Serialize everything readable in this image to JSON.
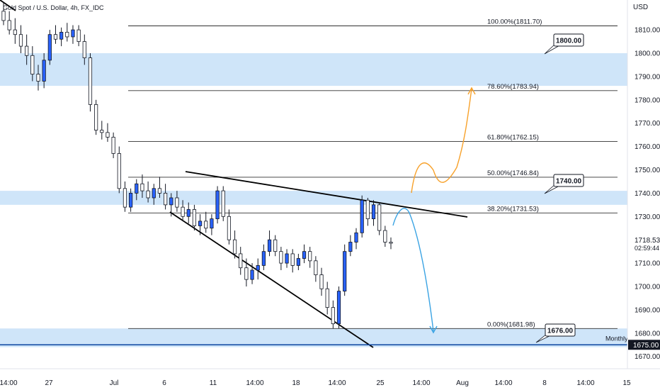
{
  "chart_data": {
    "type": "candlestick",
    "symbol_label": "Gold Spot / U.S. Dollar, 4h, FX_IDC",
    "currency_label": "USD",
    "y_ticks": [
      1810,
      1800,
      1790,
      1780,
      1770,
      1760,
      1750,
      1740,
      1730,
      1720,
      1710,
      1700,
      1690,
      1680,
      1670
    ],
    "ylim": [
      1665,
      1823
    ],
    "x_ticks": [
      "14:00",
      "27",
      "Jul",
      "6",
      "11",
      "14:00",
      "18",
      "14:00",
      "25",
      "14:00",
      "Aug",
      "14:00",
      "8",
      "14:00",
      "15"
    ],
    "zones": [
      {
        "low": 1786,
        "high": 1800,
        "label": "1800.00"
      },
      {
        "low": 1735,
        "high": 1741,
        "label": "1740.00"
      },
      {
        "low": 1674,
        "high": 1682,
        "label": "1676.00"
      }
    ],
    "fib_levels": [
      {
        "value": 1811.7,
        "label": "100.00%(1811.70)"
      },
      {
        "value": 1783.94,
        "label": "78.60%(1783.94)"
      },
      {
        "value": 1762.15,
        "label": "61.80%(1762.15)"
      },
      {
        "value": 1746.84,
        "label": "50.00%(1746.84)"
      },
      {
        "value": 1731.53,
        "label": "38.20%(1731.53)"
      },
      {
        "value": 1681.98,
        "label": "0.00%(1681.98)"
      }
    ],
    "monthly_level": {
      "value": 1675.0,
      "label": "Monthly",
      "badge": "1675.00"
    },
    "last_price": {
      "value": "1718.53",
      "countdown": "02:59:44"
    },
    "candles": [
      [
        1818,
        1822,
        1812,
        1814
      ],
      [
        1814,
        1818,
        1808,
        1810
      ],
      [
        1810,
        1815,
        1804,
        1808
      ],
      [
        1808,
        1812,
        1800,
        1803
      ],
      [
        1803,
        1808,
        1795,
        1799
      ],
      [
        1799,
        1803,
        1788,
        1791
      ],
      [
        1791,
        1795,
        1784,
        1788
      ],
      [
        1788,
        1800,
        1785,
        1797
      ],
      [
        1797,
        1810,
        1795,
        1808
      ],
      [
        1808,
        1812,
        1804,
        1806
      ],
      [
        1806,
        1811,
        1803,
        1809
      ],
      [
        1809,
        1813,
        1805,
        1807
      ],
      [
        1807,
        1812,
        1804,
        1810
      ],
      [
        1810,
        1812,
        1803,
        1805
      ],
      [
        1805,
        1808,
        1795,
        1798
      ],
      [
        1798,
        1800,
        1775,
        1778
      ],
      [
        1778,
        1780,
        1765,
        1767
      ],
      [
        1767,
        1771,
        1763,
        1766
      ],
      [
        1766,
        1770,
        1762,
        1764
      ],
      [
        1764,
        1766,
        1755,
        1757
      ],
      [
        1757,
        1760,
        1740,
        1742
      ],
      [
        1742,
        1745,
        1732,
        1734
      ],
      [
        1734,
        1742,
        1732,
        1740
      ],
      [
        1740,
        1746,
        1737,
        1744
      ],
      [
        1744,
        1748,
        1738,
        1741
      ],
      [
        1741,
        1745,
        1736,
        1738
      ],
      [
        1738,
        1744,
        1735,
        1742
      ],
      [
        1742,
        1747,
        1738,
        1740
      ],
      [
        1740,
        1744,
        1733,
        1735
      ],
      [
        1735,
        1740,
        1730,
        1738
      ],
      [
        1738,
        1741,
        1732,
        1734
      ],
      [
        1734,
        1737,
        1728,
        1730
      ],
      [
        1730,
        1736,
        1727,
        1733
      ],
      [
        1733,
        1735,
        1724,
        1726
      ],
      [
        1726,
        1731,
        1722,
        1728
      ],
      [
        1728,
        1732,
        1723,
        1725
      ],
      [
        1725,
        1731,
        1722,
        1729
      ],
      [
        1729,
        1743,
        1727,
        1741
      ],
      [
        1741,
        1743,
        1728,
        1730
      ],
      [
        1730,
        1733,
        1718,
        1720
      ],
      [
        1720,
        1724,
        1712,
        1714
      ],
      [
        1714,
        1717,
        1705,
        1708
      ],
      [
        1708,
        1712,
        1700,
        1703
      ],
      [
        1703,
        1710,
        1701,
        1707
      ],
      [
        1707,
        1712,
        1703,
        1709
      ],
      [
        1709,
        1718,
        1707,
        1715
      ],
      [
        1715,
        1724,
        1713,
        1720
      ],
      [
        1720,
        1722,
        1713,
        1715
      ],
      [
        1715,
        1717,
        1707,
        1710
      ],
      [
        1710,
        1716,
        1708,
        1714
      ],
      [
        1714,
        1716,
        1706,
        1709
      ],
      [
        1709,
        1714,
        1707,
        1712
      ],
      [
        1712,
        1718,
        1710,
        1715
      ],
      [
        1715,
        1717,
        1708,
        1711
      ],
      [
        1711,
        1713,
        1702,
        1705
      ],
      [
        1705,
        1708,
        1696,
        1699
      ],
      [
        1699,
        1702,
        1688,
        1691
      ],
      [
        1691,
        1694,
        1682,
        1684
      ],
      [
        1684,
        1700,
        1682,
        1698
      ],
      [
        1698,
        1718,
        1696,
        1715
      ],
      [
        1715,
        1722,
        1713,
        1719
      ],
      [
        1719,
        1725,
        1716,
        1723
      ],
      [
        1723,
        1739,
        1721,
        1737
      ],
      [
        1737,
        1738,
        1726,
        1729
      ],
      [
        1729,
        1737,
        1726,
        1735
      ],
      [
        1735,
        1736,
        1722,
        1724
      ],
      [
        1724,
        1726,
        1717,
        1719
      ],
      [
        1719,
        1721,
        1716,
        1718.53
      ]
    ],
    "boxes": [
      {
        "id": "box-1800",
        "text": "1800.00"
      },
      {
        "id": "box-1740",
        "text": "1740.00"
      },
      {
        "id": "box-1676",
        "text": "1676.00"
      }
    ]
  }
}
